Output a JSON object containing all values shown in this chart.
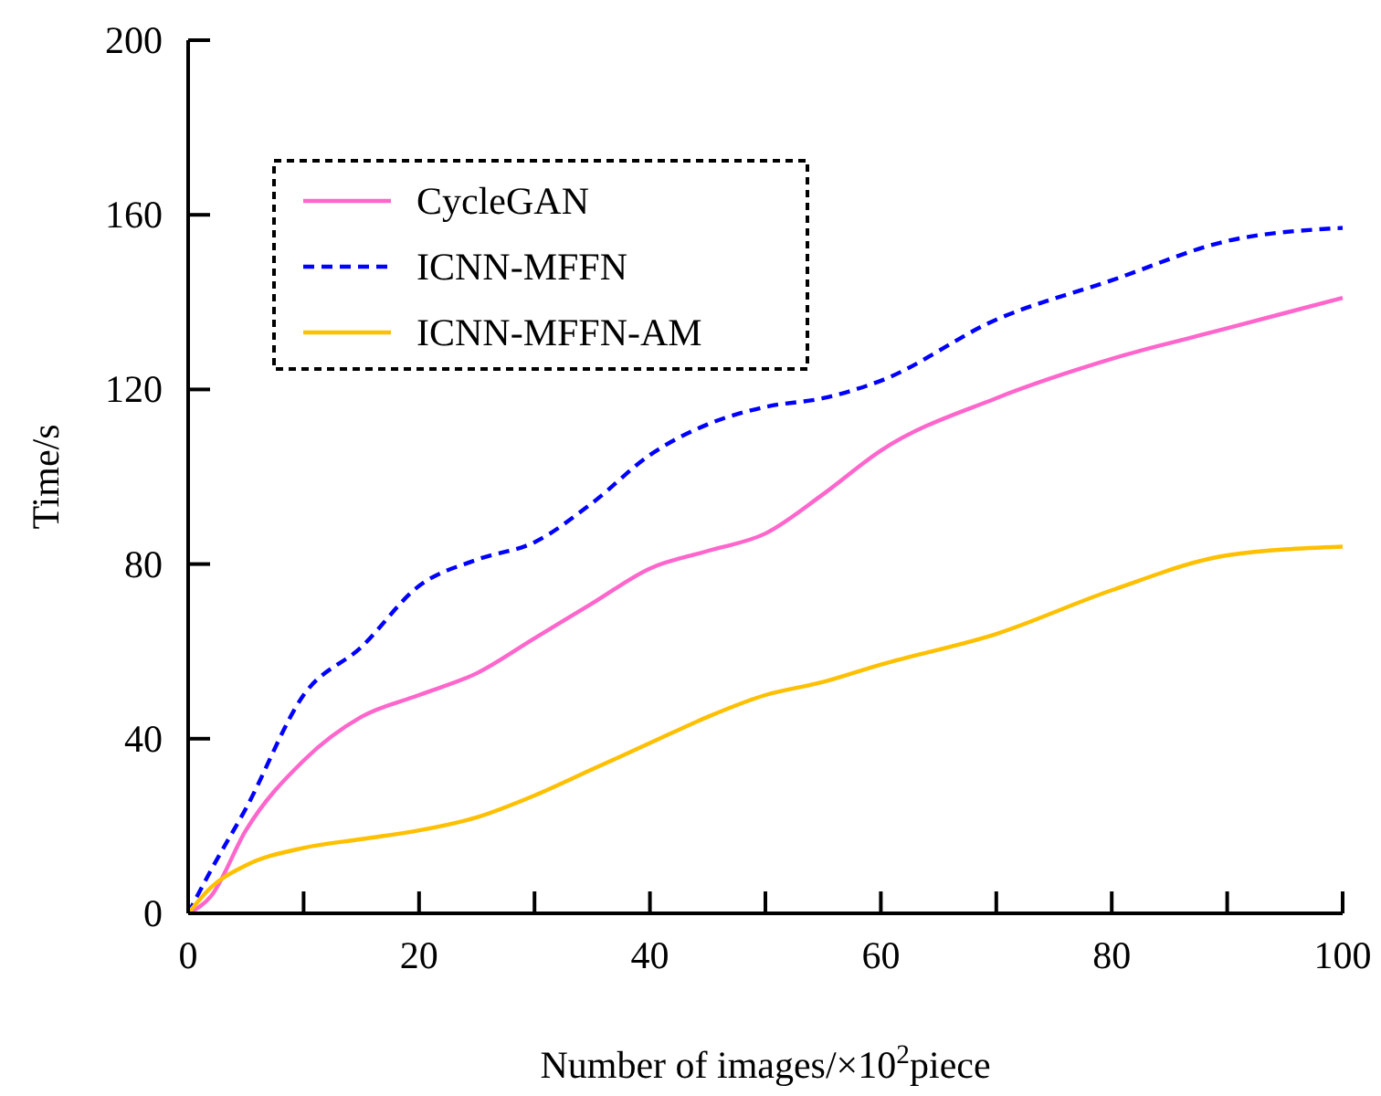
{
  "chart_data": {
    "type": "line",
    "xlabel": "Number of images/×10$^{2}$piece",
    "ylabel": "Time/s",
    "x": [
      0,
      2,
      5,
      10,
      15,
      20,
      25,
      30,
      35,
      40,
      45,
      50,
      55,
      60,
      70,
      80,
      90,
      100
    ],
    "series": [
      {
        "name": "CycleGAN",
        "color": "#ff66cc",
        "line_style": "solid",
        "values": [
          0,
          4,
          19,
          35,
          45,
          50,
          55,
          63,
          71,
          79,
          83,
          87,
          96,
          106,
          118,
          127,
          134,
          141
        ]
      },
      {
        "name": "ICNN-MFFN",
        "color": "#0000ff",
        "line_style": "dashed",
        "values": [
          0,
          10,
          24,
          50,
          61,
          75,
          81,
          85,
          94,
          105,
          112,
          116,
          118,
          122,
          136,
          145,
          154,
          157
        ]
      },
      {
        "name": "ICNN-MFFN-AM",
        "color": "#ffc000",
        "line_style": "solid",
        "values": [
          0,
          6,
          11,
          15,
          17,
          19,
          22,
          27,
          33,
          39,
          45,
          50,
          53,
          57,
          64,
          74,
          82,
          84
        ]
      }
    ],
    "xlim": [
      0,
      100
    ],
    "ylim": [
      0,
      200
    ],
    "xticks": [
      0,
      {
        "value": 10,
        "label": null
      },
      20,
      {
        "value": 30,
        "label": null
      },
      40,
      {
        "value": 50,
        "label": null
      },
      60,
      {
        "value": 70,
        "label": null
      },
      80,
      {
        "value": 90,
        "label": null
      },
      100
    ],
    "yticks": [
      0,
      40,
      80,
      120,
      160,
      200
    ],
    "grid": false,
    "legend": "top left",
    "marker": "none"
  }
}
